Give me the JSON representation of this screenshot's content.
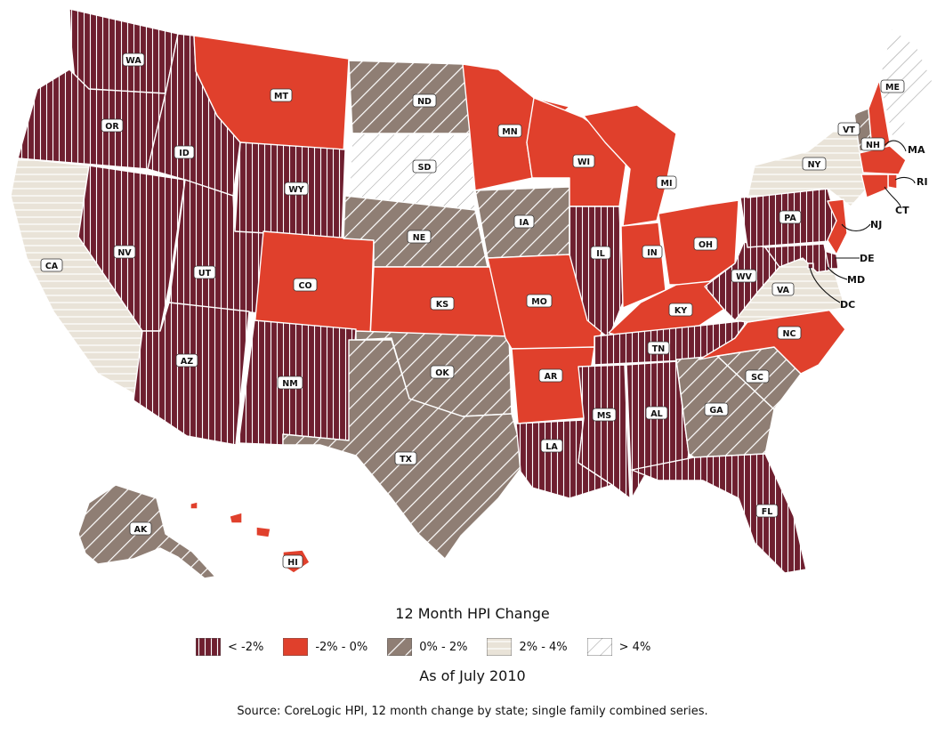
{
  "legend": {
    "title": "12 Month HPI Change",
    "items": [
      {
        "key": "lt_m2",
        "label": "< -2%",
        "color": "#6e1f2f",
        "pattern": "vertical-stripes"
      },
      {
        "key": "m2_0",
        "label": "-2% - 0%",
        "color": "#e0402c",
        "pattern": "solid"
      },
      {
        "key": "0_2",
        "label": "0% - 2%",
        "color": "#8f7e74",
        "pattern": "diagonal-stripes"
      },
      {
        "key": "2_4",
        "label": "2% - 4%",
        "color": "#e9e3d8",
        "pattern": "horizontal-stripes"
      },
      {
        "key": "gt_4",
        "label": "> 4%",
        "color": "#ffffff",
        "pattern": "diagonal-lines"
      }
    ]
  },
  "as_of": "As of July 2010",
  "source": "Source: CoreLogic HPI, 12 month change by state; single family combined series.",
  "states": [
    {
      "code": "WA",
      "category": "lt_m2"
    },
    {
      "code": "OR",
      "category": "lt_m2"
    },
    {
      "code": "CA",
      "category": "2_4"
    },
    {
      "code": "NV",
      "category": "lt_m2"
    },
    {
      "code": "ID",
      "category": "lt_m2"
    },
    {
      "code": "MT",
      "category": "m2_0"
    },
    {
      "code": "WY",
      "category": "lt_m2"
    },
    {
      "code": "UT",
      "category": "lt_m2"
    },
    {
      "code": "AZ",
      "category": "lt_m2"
    },
    {
      "code": "CO",
      "category": "m2_0"
    },
    {
      "code": "NM",
      "category": "lt_m2"
    },
    {
      "code": "ND",
      "category": "0_2"
    },
    {
      "code": "SD",
      "category": "gt_4"
    },
    {
      "code": "NE",
      "category": "0_2"
    },
    {
      "code": "KS",
      "category": "m2_0"
    },
    {
      "code": "OK",
      "category": "0_2"
    },
    {
      "code": "TX",
      "category": "0_2"
    },
    {
      "code": "MN",
      "category": "m2_0"
    },
    {
      "code": "IA",
      "category": "0_2"
    },
    {
      "code": "MO",
      "category": "m2_0"
    },
    {
      "code": "AR",
      "category": "m2_0"
    },
    {
      "code": "LA",
      "category": "lt_m2"
    },
    {
      "code": "WI",
      "category": "m2_0"
    },
    {
      "code": "IL",
      "category": "lt_m2"
    },
    {
      "code": "MI",
      "category": "m2_0"
    },
    {
      "code": "IN",
      "category": "m2_0"
    },
    {
      "code": "OH",
      "category": "m2_0"
    },
    {
      "code": "KY",
      "category": "m2_0"
    },
    {
      "code": "TN",
      "category": "lt_m2"
    },
    {
      "code": "MS",
      "category": "lt_m2"
    },
    {
      "code": "AL",
      "category": "lt_m2"
    },
    {
      "code": "GA",
      "category": "0_2"
    },
    {
      "code": "FL",
      "category": "lt_m2"
    },
    {
      "code": "SC",
      "category": "0_2"
    },
    {
      "code": "NC",
      "category": "m2_0"
    },
    {
      "code": "VA",
      "category": "2_4"
    },
    {
      "code": "WV",
      "category": "lt_m2"
    },
    {
      "code": "PA",
      "category": "lt_m2"
    },
    {
      "code": "NY",
      "category": "2_4"
    },
    {
      "code": "VT",
      "category": "0_2"
    },
    {
      "code": "NH",
      "category": "m2_0"
    },
    {
      "code": "ME",
      "category": "gt_4"
    },
    {
      "code": "MA",
      "category": "m2_0"
    },
    {
      "code": "RI",
      "category": "m2_0"
    },
    {
      "code": "CT",
      "category": "m2_0"
    },
    {
      "code": "NJ",
      "category": "m2_0"
    },
    {
      "code": "DE",
      "category": "lt_m2"
    },
    {
      "code": "MD",
      "category": "lt_m2"
    },
    {
      "code": "DC",
      "category": "lt_m2"
    },
    {
      "code": "AK",
      "category": "0_2"
    },
    {
      "code": "HI",
      "category": "m2_0"
    }
  ]
}
